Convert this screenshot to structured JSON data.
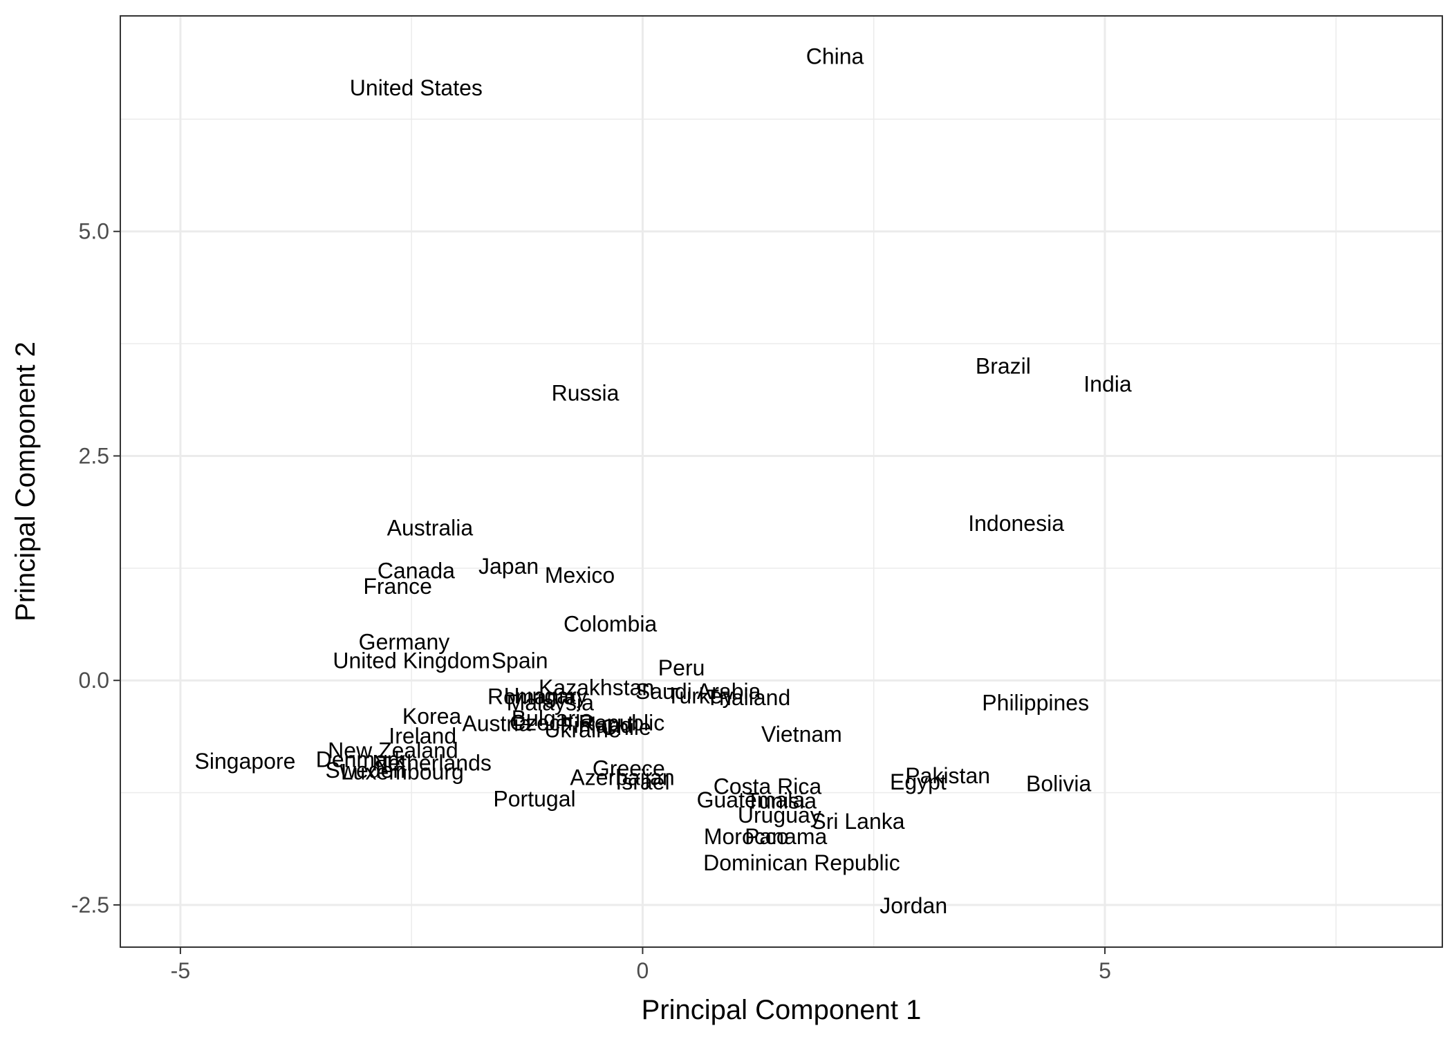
{
  "chart_data": {
    "type": "scatter",
    "title": "",
    "xlabel": "Principal Component 1",
    "ylabel": "Principal Component 2",
    "xlim": [
      -5.65,
      8.65
    ],
    "ylim": [
      -2.97,
      7.4
    ],
    "xticks": [
      -5,
      0,
      5
    ],
    "xtick_labels": [
      "-5",
      "0",
      "5"
    ],
    "yticks": [
      -2.5,
      0,
      2.5,
      5
    ],
    "ytick_labels": [
      "-2.5",
      "0.0",
      "2.5",
      "5.0"
    ],
    "grid": true,
    "legend": "none",
    "points": [
      {
        "label": "China",
        "x": 2.08,
        "y": 6.95
      },
      {
        "label": "United States",
        "x": -2.45,
        "y": 6.6
      },
      {
        "label": "Brazil",
        "x": 3.9,
        "y": 3.5
      },
      {
        "label": "India",
        "x": 5.03,
        "y": 3.3
      },
      {
        "label": "Russia",
        "x": -0.62,
        "y": 3.2
      },
      {
        "label": "Indonesia",
        "x": 4.04,
        "y": 1.75
      },
      {
        "label": "Australia",
        "x": -2.3,
        "y": 1.7
      },
      {
        "label": "Canada",
        "x": -2.45,
        "y": 1.22
      },
      {
        "label": "Japan",
        "x": -1.45,
        "y": 1.27
      },
      {
        "label": "Mexico",
        "x": -0.68,
        "y": 1.17
      },
      {
        "label": "France",
        "x": -2.65,
        "y": 1.05
      },
      {
        "label": "Colombia",
        "x": -0.35,
        "y": 0.63
      },
      {
        "label": "Germany",
        "x": -2.58,
        "y": 0.43
      },
      {
        "label": "United Kingdom",
        "x": -2.5,
        "y": 0.22
      },
      {
        "label": "Spain",
        "x": -1.33,
        "y": 0.22
      },
      {
        "label": "Peru",
        "x": 0.42,
        "y": 0.14
      },
      {
        "label": "Kazakhstan",
        "x": -0.5,
        "y": -0.08
      },
      {
        "label": "Saudi Arabia",
        "x": 0.6,
        "y": -0.12
      },
      {
        "label": "Turkey",
        "x": 0.62,
        "y": -0.17
      },
      {
        "label": "Thailand",
        "x": 1.14,
        "y": -0.19
      },
      {
        "label": "Romania",
        "x": -1.2,
        "y": -0.18
      },
      {
        "label": "Hungary",
        "x": -1.05,
        "y": -0.17
      },
      {
        "label": "Malaysia",
        "x": -1.0,
        "y": -0.25
      },
      {
        "label": "Philippines",
        "x": 4.25,
        "y": -0.25
      },
      {
        "label": "Korea",
        "x": -2.28,
        "y": -0.4
      },
      {
        "label": "Austria",
        "x": -1.58,
        "y": -0.48
      },
      {
        "label": "Bulgaria",
        "x": -0.98,
        "y": -0.42
      },
      {
        "label": "Czech Republic",
        "x": -0.6,
        "y": -0.47
      },
      {
        "label": "Finland",
        "x": -0.5,
        "y": -0.5
      },
      {
        "label": "Chile",
        "x": -0.18,
        "y": -0.52
      },
      {
        "label": "Ukraine",
        "x": -0.65,
        "y": -0.55
      },
      {
        "label": "Vietnam",
        "x": 1.72,
        "y": -0.6
      },
      {
        "label": "Ireland",
        "x": -2.38,
        "y": -0.62
      },
      {
        "label": "New Zealand",
        "x": -2.7,
        "y": -0.78
      },
      {
        "label": "Singapore",
        "x": -4.3,
        "y": -0.9
      },
      {
        "label": "Denmark",
        "x": -3.05,
        "y": -0.88
      },
      {
        "label": "Netherlands",
        "x": -2.28,
        "y": -0.92
      },
      {
        "label": "Sweden",
        "x": -3.0,
        "y": -1.0
      },
      {
        "label": "Luxembourg",
        "x": -2.6,
        "y": -1.02
      },
      {
        "label": "Greece",
        "x": -0.15,
        "y": -0.98
      },
      {
        "label": "Azerbaijan",
        "x": -0.22,
        "y": -1.08
      },
      {
        "label": "Israel",
        "x": 0.0,
        "y": -1.13
      },
      {
        "label": "Costa Rica",
        "x": 1.35,
        "y": -1.18
      },
      {
        "label": "Pakistan",
        "x": 3.3,
        "y": -1.06
      },
      {
        "label": "Egypt",
        "x": 2.98,
        "y": -1.13
      },
      {
        "label": "Bolivia",
        "x": 4.5,
        "y": -1.15
      },
      {
        "label": "Portugal",
        "x": -1.17,
        "y": -1.32
      },
      {
        "label": "Guatemala",
        "x": 1.17,
        "y": -1.33
      },
      {
        "label": "Tunisia",
        "x": 1.5,
        "y": -1.34
      },
      {
        "label": "Uruguay",
        "x": 1.48,
        "y": -1.5
      },
      {
        "label": "Sri Lanka",
        "x": 2.33,
        "y": -1.57
      },
      {
        "label": "Morocco",
        "x": 1.12,
        "y": -1.74
      },
      {
        "label": "Panama",
        "x": 1.55,
        "y": -1.74
      },
      {
        "label": "Dominican Republic",
        "x": 1.72,
        "y": -2.03
      },
      {
        "label": "Jordan",
        "x": 2.93,
        "y": -2.51
      }
    ]
  }
}
